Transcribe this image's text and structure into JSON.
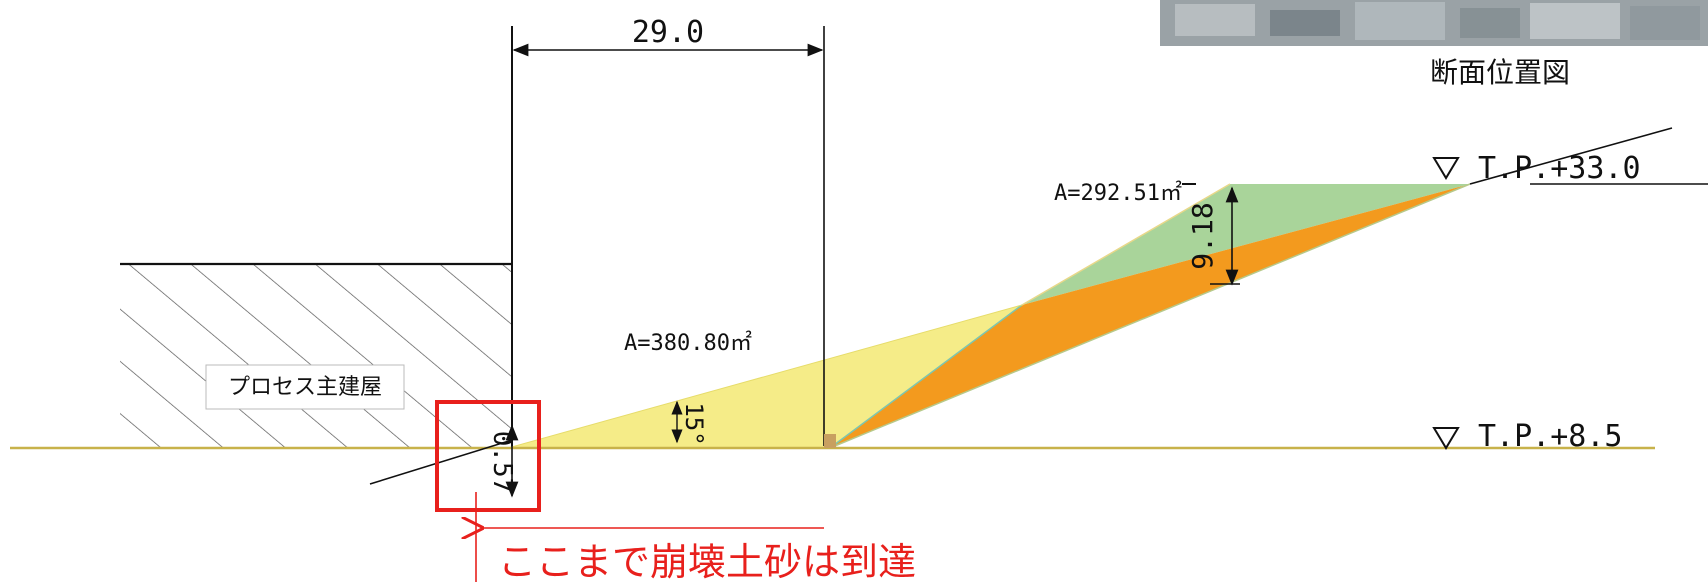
{
  "location_label": "断面位置図",
  "building_label": "プロセス主建屋",
  "callout_text": "ここまで崩壊土砂は到達",
  "dimensions": {
    "top_width": "29.0",
    "slope_angle": "15°",
    "height_upper": "9.18",
    "offset_small": "0.57"
  },
  "areas": {
    "yellow": "A=380.80㎡",
    "green": "A=292.51㎡"
  },
  "elevations": {
    "top": "T.P.+33.0",
    "base": "T.P.+8.5"
  },
  "colors": {
    "yellow_fill": "#f5ec88",
    "orange_fill": "#f39a1e",
    "green_fill": "#a9d49a",
    "ground_line": "#c8b24a",
    "callout_red": "#e8201c"
  },
  "icons": {
    "elevation_marker": "down-triangle-icon"
  }
}
